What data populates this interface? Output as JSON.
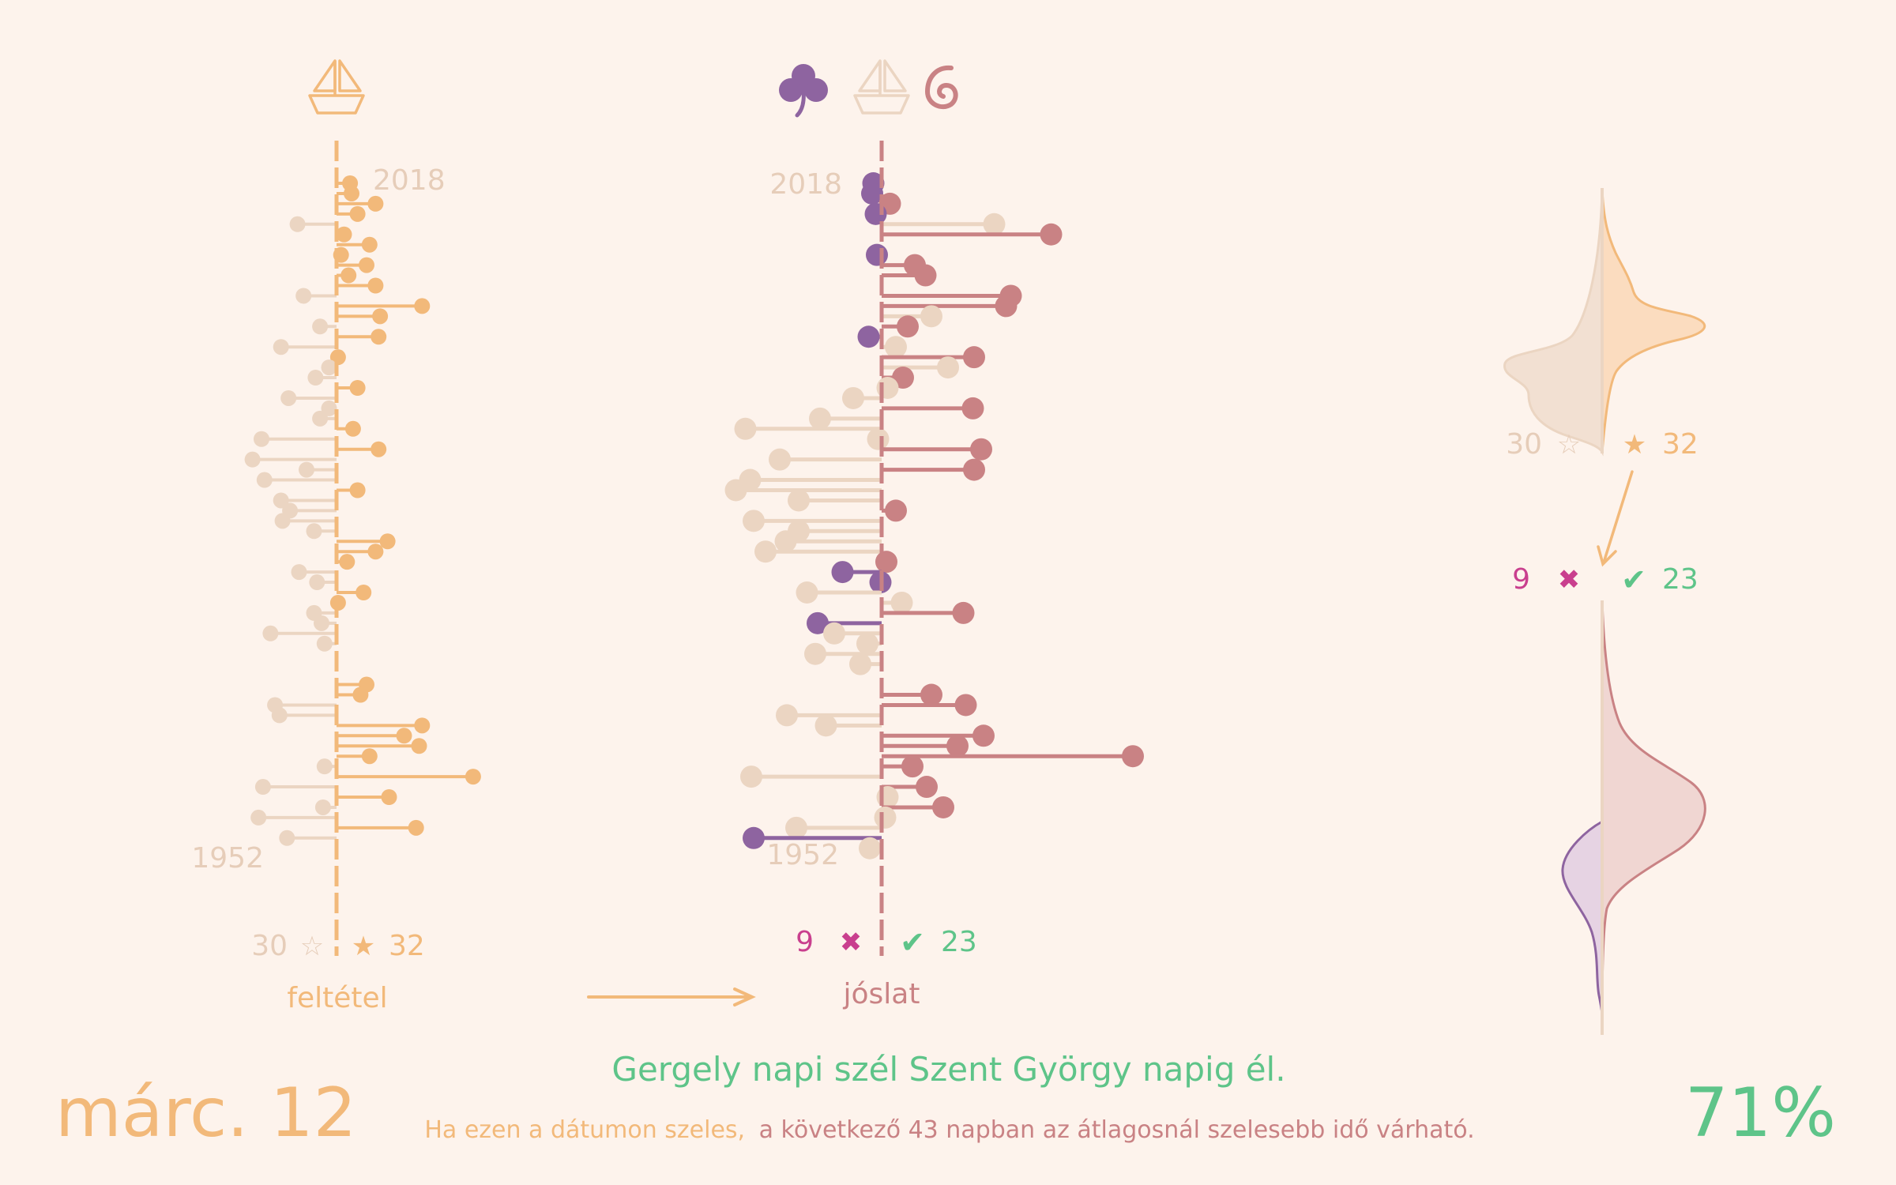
{
  "colors": {
    "background": "#fdf3ec",
    "condition_yes": "#f2b97a",
    "condition_no": "#ebd5c2",
    "predict_yes": "#c98284",
    "predict_fail": "#8e64a0",
    "predict_neutral": "#ebd5c2",
    "correct": "#5ec489",
    "wrong": "#c93f8e",
    "year_label": "#e6cdb9"
  },
  "icons": {
    "left_header": [
      "sailboat-icon"
    ],
    "middle_header": [
      "clover-icon",
      "sailboat-icon",
      "spiral-wind-icon"
    ]
  },
  "left_panel": {
    "year_top": "2018",
    "year_bottom": "1952",
    "count_no": "30",
    "count_yes": "32",
    "star_empty": "☆",
    "star_filled": "★",
    "label": "feltétel"
  },
  "middle_panel": {
    "year_top": "2018",
    "year_bottom": "1952",
    "count_wrong": "9",
    "count_correct": "23",
    "wrong_mark": "✖",
    "correct_mark": "✔",
    "label": "jóslat"
  },
  "right_panel": {
    "count_no": "30",
    "count_yes": "32",
    "star_empty": "☆",
    "star_filled": "★",
    "count_wrong": "9",
    "count_correct": "23",
    "wrong_mark": "✖",
    "correct_mark": "✔"
  },
  "footer": {
    "date": "márc. 12",
    "proverb": "Gergely napi szél Szent György napig él.",
    "explanation_condition": "Ha ezen a dátumon szeles,",
    "explanation_result": "a következő 43 napban az átlagosnál szelesebb idő várható.",
    "accuracy": "71%"
  },
  "chart_data": [
    {
      "type": "lollipop",
      "name": "feltétel",
      "y_axis": "year",
      "ylim": [
        1952,
        2018
      ],
      "x_meaning": "wind deviation on the date (left = calm, right = windy)",
      "points": [
        {
          "year": 2018,
          "value": 0.9,
          "cls": "yes"
        },
        {
          "year": 2017,
          "value": 1.0,
          "cls": "yes"
        },
        {
          "year": 2016,
          "value": 2.6,
          "cls": "yes"
        },
        {
          "year": 2015,
          "value": 1.4,
          "cls": "yes"
        },
        {
          "year": 2014,
          "value": -2.6,
          "cls": "no"
        },
        {
          "year": 2013,
          "value": 0.5,
          "cls": "yes"
        },
        {
          "year": 2012,
          "value": 2.2,
          "cls": "yes"
        },
        {
          "year": 2011,
          "value": 0.3,
          "cls": "yes"
        },
        {
          "year": 2010,
          "value": 2.0,
          "cls": "yes"
        },
        {
          "year": 2009,
          "value": 0.8,
          "cls": "yes"
        },
        {
          "year": 2008,
          "value": 2.6,
          "cls": "yes"
        },
        {
          "year": 2007,
          "value": -2.2,
          "cls": "no"
        },
        {
          "year": 2006,
          "value": 5.7,
          "cls": "yes"
        },
        {
          "year": 2005,
          "value": 2.9,
          "cls": "yes"
        },
        {
          "year": 2004,
          "value": -1.1,
          "cls": "no"
        },
        {
          "year": 2003,
          "value": 2.8,
          "cls": "yes"
        },
        {
          "year": 2002,
          "value": -3.7,
          "cls": "no"
        },
        {
          "year": 2001,
          "value": 0.1,
          "cls": "yes"
        },
        {
          "year": 2000,
          "value": -0.5,
          "cls": "no"
        },
        {
          "year": 1999,
          "value": -1.4,
          "cls": "no"
        },
        {
          "year": 1998,
          "value": 1.4,
          "cls": "yes"
        },
        {
          "year": 1997,
          "value": -3.2,
          "cls": "no"
        },
        {
          "year": 1996,
          "value": -0.5,
          "cls": "no"
        },
        {
          "year": 1995,
          "value": -1.1,
          "cls": "no"
        },
        {
          "year": 1994,
          "value": 1.1,
          "cls": "yes"
        },
        {
          "year": 1993,
          "value": -5.0,
          "cls": "no"
        },
        {
          "year": 1992,
          "value": 2.8,
          "cls": "yes"
        },
        {
          "year": 1991,
          "value": -5.6,
          "cls": "no"
        },
        {
          "year": 1990,
          "value": -2.0,
          "cls": "no"
        },
        {
          "year": 1989,
          "value": -4.8,
          "cls": "no"
        },
        {
          "year": 1988,
          "value": 1.4,
          "cls": "yes"
        },
        {
          "year": 1987,
          "value": -3.7,
          "cls": "no"
        },
        {
          "year": 1986,
          "value": -3.1,
          "cls": "no"
        },
        {
          "year": 1985,
          "value": -3.6,
          "cls": "no"
        },
        {
          "year": 1984,
          "value": -1.5,
          "cls": "no"
        },
        {
          "year": 1983,
          "value": 3.4,
          "cls": "yes"
        },
        {
          "year": 1982,
          "value": 2.6,
          "cls": "yes"
        },
        {
          "year": 1981,
          "value": 0.7,
          "cls": "yes"
        },
        {
          "year": 1980,
          "value": -2.5,
          "cls": "no"
        },
        {
          "year": 1979,
          "value": -1.3,
          "cls": "no"
        },
        {
          "year": 1978,
          "value": 1.8,
          "cls": "yes"
        },
        {
          "year": 1977,
          "value": 0.1,
          "cls": "yes"
        },
        {
          "year": 1976,
          "value": -1.5,
          "cls": "no"
        },
        {
          "year": 1975,
          "value": -1.0,
          "cls": "no"
        },
        {
          "year": 1974,
          "value": -4.4,
          "cls": "no"
        },
        {
          "year": 1973,
          "value": -0.8,
          "cls": "no"
        },
        {
          "year": 1969,
          "value": 2.0,
          "cls": "yes"
        },
        {
          "year": 1968,
          "value": 1.6,
          "cls": "yes"
        },
        {
          "year": 1967,
          "value": -4.1,
          "cls": "no"
        },
        {
          "year": 1966,
          "value": -3.8,
          "cls": "no"
        },
        {
          "year": 1965,
          "value": 5.7,
          "cls": "yes"
        },
        {
          "year": 1964,
          "value": 4.5,
          "cls": "yes"
        },
        {
          "year": 1963,
          "value": 5.5,
          "cls": "yes"
        },
        {
          "year": 1962,
          "value": 2.2,
          "cls": "yes"
        },
        {
          "year": 1961,
          "value": -0.8,
          "cls": "no"
        },
        {
          "year": 1960,
          "value": 9.1,
          "cls": "yes"
        },
        {
          "year": 1959,
          "value": -4.9,
          "cls": "no"
        },
        {
          "year": 1958,
          "value": 3.5,
          "cls": "yes"
        },
        {
          "year": 1957,
          "value": -0.9,
          "cls": "no"
        },
        {
          "year": 1956,
          "value": -5.2,
          "cls": "no"
        },
        {
          "year": 1955,
          "value": 5.3,
          "cls": "yes"
        },
        {
          "year": 1954,
          "value": -3.3,
          "cls": "no"
        }
      ]
    },
    {
      "type": "lollipop",
      "name": "jóslat",
      "y_axis": "year",
      "ylim": [
        1952,
        2018
      ],
      "x_meaning": "wind deviation over the next 43 days",
      "points": [
        {
          "year": 2018,
          "value": -0.7,
          "cls": "fail"
        },
        {
          "year": 2017,
          "value": -0.8,
          "cls": "fail"
        },
        {
          "year": 2016,
          "value": 0.7,
          "cls": "yes"
        },
        {
          "year": 2015,
          "value": -0.5,
          "cls": "fail"
        },
        {
          "year": 2014,
          "value": 9.5,
          "cls": "neutral"
        },
        {
          "year": 2013,
          "value": 14.3,
          "cls": "yes"
        },
        {
          "year": 2011,
          "value": -0.4,
          "cls": "fail"
        },
        {
          "year": 2010,
          "value": 2.8,
          "cls": "yes"
        },
        {
          "year": 2009,
          "value": 3.7,
          "cls": "yes"
        },
        {
          "year": 2007,
          "value": 10.9,
          "cls": "yes"
        },
        {
          "year": 2006,
          "value": 10.5,
          "cls": "yes"
        },
        {
          "year": 2005,
          "value": 4.2,
          "cls": "neutral"
        },
        {
          "year": 2004,
          "value": 2.2,
          "cls": "yes"
        },
        {
          "year": 2003,
          "value": -1.1,
          "cls": "fail"
        },
        {
          "year": 2002,
          "value": 1.2,
          "cls": "neutral"
        },
        {
          "year": 2001,
          "value": 7.8,
          "cls": "yes"
        },
        {
          "year": 2000,
          "value": 5.6,
          "cls": "neutral"
        },
        {
          "year": 1999,
          "value": 1.8,
          "cls": "yes"
        },
        {
          "year": 1998,
          "value": 0.5,
          "cls": "neutral"
        },
        {
          "year": 1997,
          "value": -2.4,
          "cls": "neutral"
        },
        {
          "year": 1996,
          "value": 7.7,
          "cls": "yes"
        },
        {
          "year": 1995,
          "value": -5.2,
          "cls": "neutral"
        },
        {
          "year": 1994,
          "value": -11.5,
          "cls": "neutral"
        },
        {
          "year": 1993,
          "value": -0.3,
          "cls": "neutral"
        },
        {
          "year": 1992,
          "value": 8.4,
          "cls": "yes"
        },
        {
          "year": 1991,
          "value": -8.6,
          "cls": "neutral"
        },
        {
          "year": 1990,
          "value": 7.8,
          "cls": "yes"
        },
        {
          "year": 1989,
          "value": -11.1,
          "cls": "neutral"
        },
        {
          "year": 1988,
          "value": -12.3,
          "cls": "neutral"
        },
        {
          "year": 1987,
          "value": -7.0,
          "cls": "neutral"
        },
        {
          "year": 1986,
          "value": 1.2,
          "cls": "yes"
        },
        {
          "year": 1985,
          "value": -10.8,
          "cls": "neutral"
        },
        {
          "year": 1984,
          "value": -7.0,
          "cls": "neutral"
        },
        {
          "year": 1983,
          "value": -8.1,
          "cls": "neutral"
        },
        {
          "year": 1982,
          "value": -9.8,
          "cls": "neutral"
        },
        {
          "year": 1981,
          "value": 0.4,
          "cls": "yes"
        },
        {
          "year": 1980,
          "value": -3.3,
          "cls": "fail"
        },
        {
          "year": 1979,
          "value": -0.1,
          "cls": "fail"
        },
        {
          "year": 1978,
          "value": -6.3,
          "cls": "neutral"
        },
        {
          "year": 1977,
          "value": 1.7,
          "cls": "neutral"
        },
        {
          "year": 1976,
          "value": 6.9,
          "cls": "yes"
        },
        {
          "year": 1975,
          "value": -5.4,
          "cls": "fail"
        },
        {
          "year": 1974,
          "value": -4.0,
          "cls": "neutral"
        },
        {
          "year": 1973,
          "value": -1.2,
          "cls": "neutral"
        },
        {
          "year": 1972,
          "value": -5.6,
          "cls": "neutral"
        },
        {
          "year": 1971,
          "value": -1.8,
          "cls": "neutral"
        },
        {
          "year": 1968,
          "value": 4.2,
          "cls": "yes"
        },
        {
          "year": 1967,
          "value": 7.1,
          "cls": "yes"
        },
        {
          "year": 1966,
          "value": -8.0,
          "cls": "neutral"
        },
        {
          "year": 1965,
          "value": -4.7,
          "cls": "neutral"
        },
        {
          "year": 1964,
          "value": 8.6,
          "cls": "yes"
        },
        {
          "year": 1963,
          "value": 6.4,
          "cls": "yes"
        },
        {
          "year": 1962,
          "value": 21.2,
          "cls": "yes"
        },
        {
          "year": 1961,
          "value": 2.6,
          "cls": "yes"
        },
        {
          "year": 1960,
          "value": -11.0,
          "cls": "neutral"
        },
        {
          "year": 1959,
          "value": 3.8,
          "cls": "yes"
        },
        {
          "year": 1958,
          "value": 0.5,
          "cls": "neutral"
        },
        {
          "year": 1957,
          "value": 5.2,
          "cls": "yes"
        },
        {
          "year": 1956,
          "value": 0.3,
          "cls": "neutral"
        },
        {
          "year": 1955,
          "value": -7.2,
          "cls": "neutral"
        },
        {
          "year": 1954,
          "value": -10.8,
          "cls": "fail"
        },
        {
          "year": 1953,
          "value": -1.0,
          "cls": "neutral"
        }
      ]
    }
  ]
}
